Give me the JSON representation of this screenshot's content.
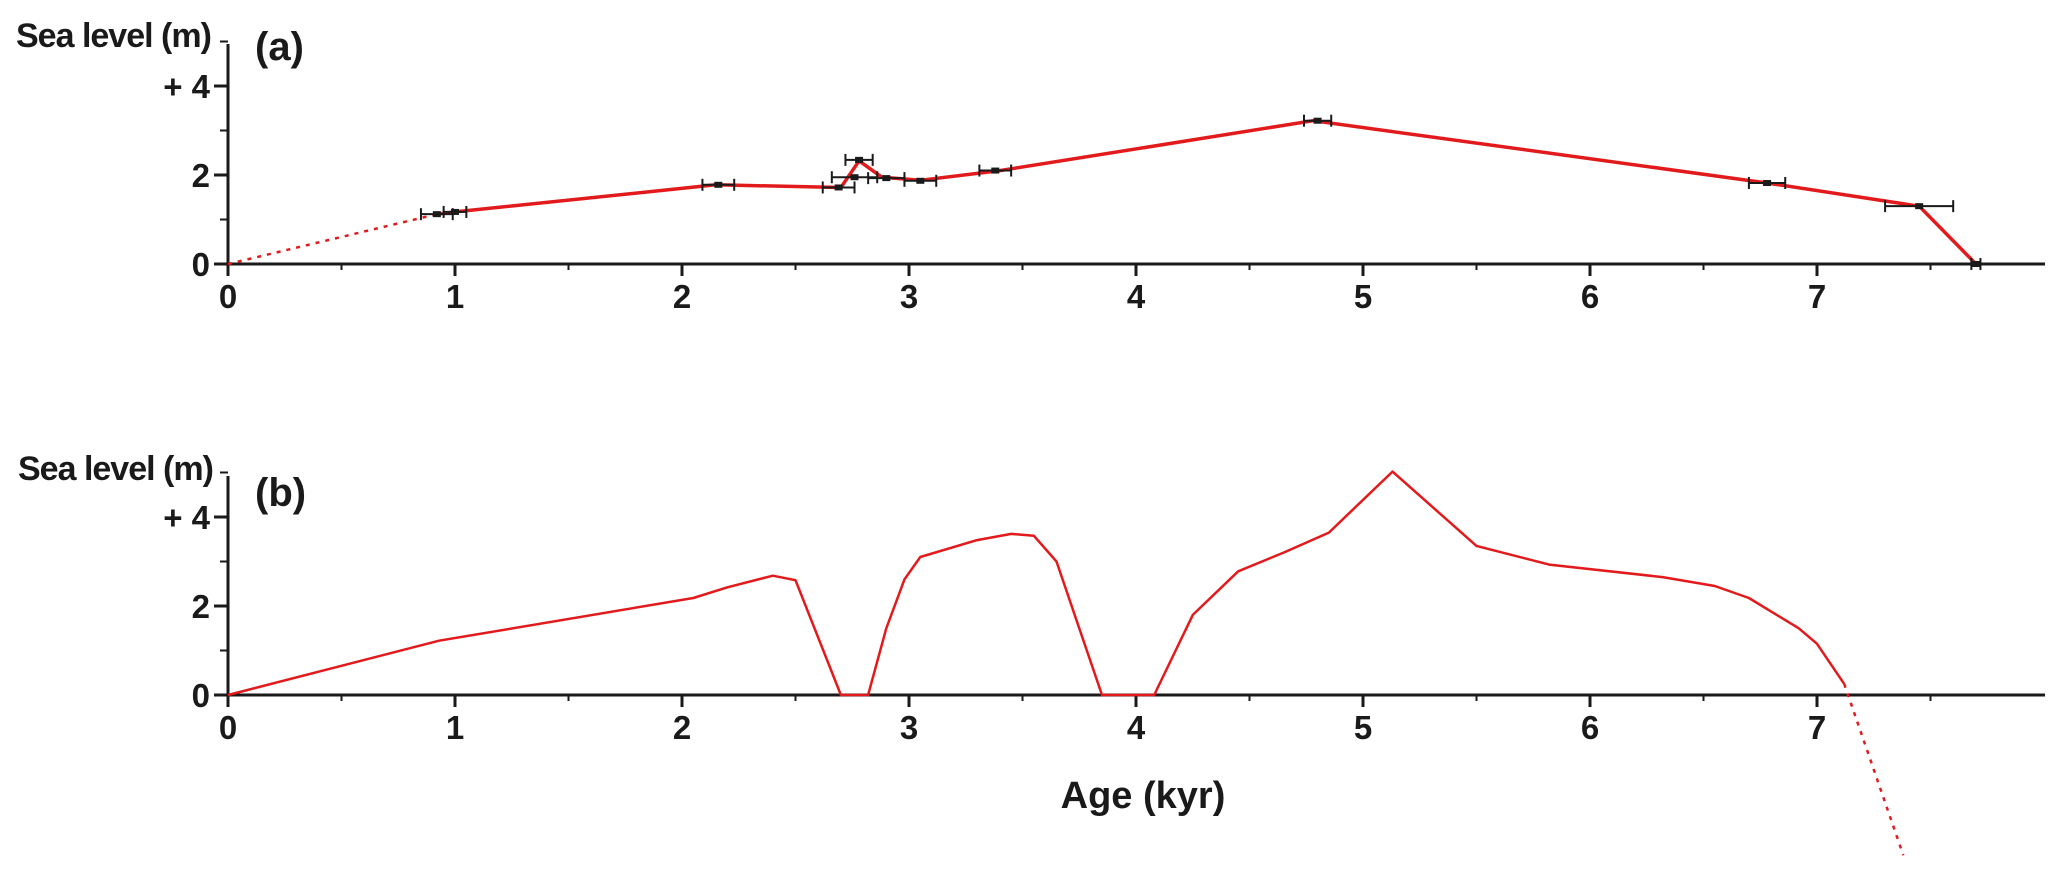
{
  "chart_data": [
    {
      "type": "line",
      "panel_label": "(a)",
      "ylabel": "Sea level (m)",
      "xlabel": "",
      "xlim": [
        0,
        7.95
      ],
      "ylim": [
        0,
        5.0
      ],
      "x_ticks": [
        0,
        1,
        2,
        3,
        4,
        5,
        6,
        7
      ],
      "x_tick_labels": [
        "0",
        "1",
        "2",
        "3",
        "4",
        "5",
        "6",
        "7"
      ],
      "y_ticks": [
        0,
        2,
        4
      ],
      "y_tick_labels": [
        "0",
        "2",
        "+ 4"
      ],
      "grid": false,
      "series": [
        {
          "style": "solid",
          "color": "#e31a1c",
          "points": [
            [
              0.92,
              1.12
            ],
            [
              1.0,
              1.17
            ],
            [
              2.15,
              1.78
            ],
            [
              2.7,
              1.72
            ],
            [
              2.78,
              2.32
            ],
            [
              2.88,
              1.95
            ],
            [
              3.05,
              1.88
            ],
            [
              3.4,
              2.1
            ],
            [
              4.78,
              3.22
            ],
            [
              6.78,
              1.82
            ],
            [
              7.45,
              1.3
            ],
            [
              7.7,
              0.0
            ]
          ]
        },
        {
          "style": "dotted",
          "color": "#e31a1c",
          "points": [
            [
              0.0,
              0.0
            ],
            [
              0.92,
              1.12
            ]
          ]
        }
      ],
      "error_bars": [
        {
          "x": 0.92,
          "y": 1.12,
          "xerr": [
            0.07,
            0.07
          ]
        },
        {
          "x": 1.0,
          "y": 1.17,
          "xerr": [
            0.05,
            0.05
          ]
        },
        {
          "x": 2.16,
          "y": 1.78,
          "xerr": [
            0.07,
            0.07
          ]
        },
        {
          "x": 2.69,
          "y": 1.72,
          "xerr": [
            0.07,
            0.07
          ]
        },
        {
          "x": 2.76,
          "y": 1.95,
          "xerr": [
            0.1,
            0.1
          ]
        },
        {
          "x": 2.78,
          "y": 2.34,
          "xerr": [
            0.06,
            0.06
          ]
        },
        {
          "x": 2.9,
          "y": 1.93,
          "xerr": [
            0.08,
            0.08
          ]
        },
        {
          "x": 3.05,
          "y": 1.87,
          "xerr": [
            0.07,
            0.07
          ]
        },
        {
          "x": 3.38,
          "y": 2.1,
          "xerr": [
            0.07,
            0.07
          ]
        },
        {
          "x": 4.8,
          "y": 3.22,
          "xerr": [
            0.06,
            0.06
          ]
        },
        {
          "x": 6.78,
          "y": 1.82,
          "xerr": [
            0.08,
            0.08
          ]
        },
        {
          "x": 7.45,
          "y": 1.3,
          "xerr": [
            0.15,
            0.15
          ]
        },
        {
          "x": 7.7,
          "y": 0.0,
          "xerr": [
            0.02,
            0.02
          ]
        }
      ]
    },
    {
      "type": "line",
      "panel_label": "(b)",
      "ylabel": "Sea level (m)",
      "xlabel": "Age (kyr)",
      "xlim": [
        0,
        7.95
      ],
      "ylim": [
        0,
        5.0
      ],
      "x_ticks": [
        0,
        1,
        2,
        3,
        4,
        5,
        6,
        7
      ],
      "x_tick_labels": [
        "0",
        "1",
        "2",
        "3",
        "4",
        "5",
        "6",
        "7"
      ],
      "y_ticks": [
        0,
        2,
        4
      ],
      "y_tick_labels": [
        "0",
        "2",
        "+ 4"
      ],
      "grid": false,
      "series": [
        {
          "style": "solid",
          "color": "#e31a1c",
          "points": [
            [
              0.0,
              0.0
            ],
            [
              0.93,
              1.22
            ],
            [
              2.05,
              2.18
            ],
            [
              2.2,
              2.42
            ],
            [
              2.4,
              2.68
            ],
            [
              2.5,
              2.58
            ],
            [
              2.7,
              0.0
            ],
            [
              2.82,
              0.0
            ],
            [
              2.9,
              1.5
            ],
            [
              2.98,
              2.6
            ],
            [
              3.05,
              3.1
            ],
            [
              3.3,
              3.48
            ],
            [
              3.45,
              3.62
            ],
            [
              3.55,
              3.58
            ],
            [
              3.65,
              3.0
            ],
            [
              3.85,
              0.0
            ],
            [
              4.08,
              0.0
            ],
            [
              4.25,
              1.8
            ],
            [
              4.45,
              2.78
            ],
            [
              4.65,
              3.2
            ],
            [
              4.85,
              3.65
            ],
            [
              5.13,
              5.02
            ],
            [
              5.5,
              3.35
            ],
            [
              5.82,
              2.93
            ],
            [
              6.32,
              2.65
            ],
            [
              6.55,
              2.45
            ],
            [
              6.7,
              2.18
            ],
            [
              6.92,
              1.5
            ],
            [
              7.0,
              1.15
            ],
            [
              7.12,
              0.25
            ]
          ]
        },
        {
          "style": "dotted",
          "color": "#e31a1c",
          "points": [
            [
              7.12,
              0.25
            ],
            [
              7.38,
              -3.6
            ]
          ]
        }
      ]
    }
  ]
}
